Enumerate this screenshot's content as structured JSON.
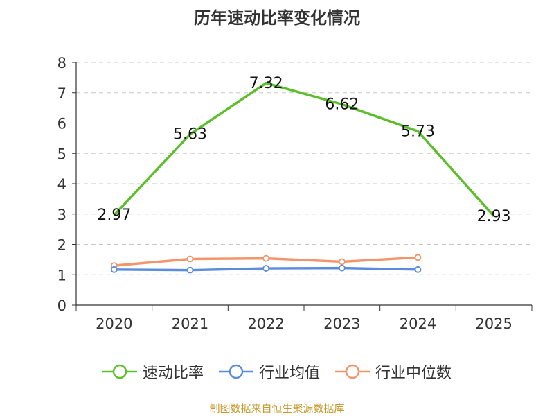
{
  "chart_data": {
    "type": "line",
    "title": "历年速动比率变化情况",
    "categories": [
      "2020",
      "2021",
      "2022",
      "2023",
      "2024",
      "2025"
    ],
    "ylim": [
      0,
      8
    ],
    "yticks": [
      0,
      1,
      2,
      3,
      4,
      5,
      6,
      7,
      8
    ],
    "grid": true,
    "legend_position": "bottom",
    "series": [
      {
        "name": "速动比率",
        "color": "#5cbf2a",
        "values": [
          2.97,
          5.63,
          7.32,
          6.62,
          5.73,
          2.93
        ],
        "labels": [
          "2.97",
          "5.63",
          "7.32",
          "6.62",
          "5.73",
          "2.93"
        ],
        "show_markers": false
      },
      {
        "name": "行业均值",
        "color": "#5b8ddc",
        "values": [
          1.17,
          1.15,
          1.21,
          1.22,
          1.17,
          null
        ],
        "show_markers": true
      },
      {
        "name": "行业中位数",
        "color": "#f2956a",
        "values": [
          1.3,
          1.52,
          1.54,
          1.43,
          1.57,
          null
        ],
        "show_markers": true
      }
    ]
  },
  "source_text": "制图数据来自恒生聚源数据库",
  "source_color": "#c59a2a"
}
